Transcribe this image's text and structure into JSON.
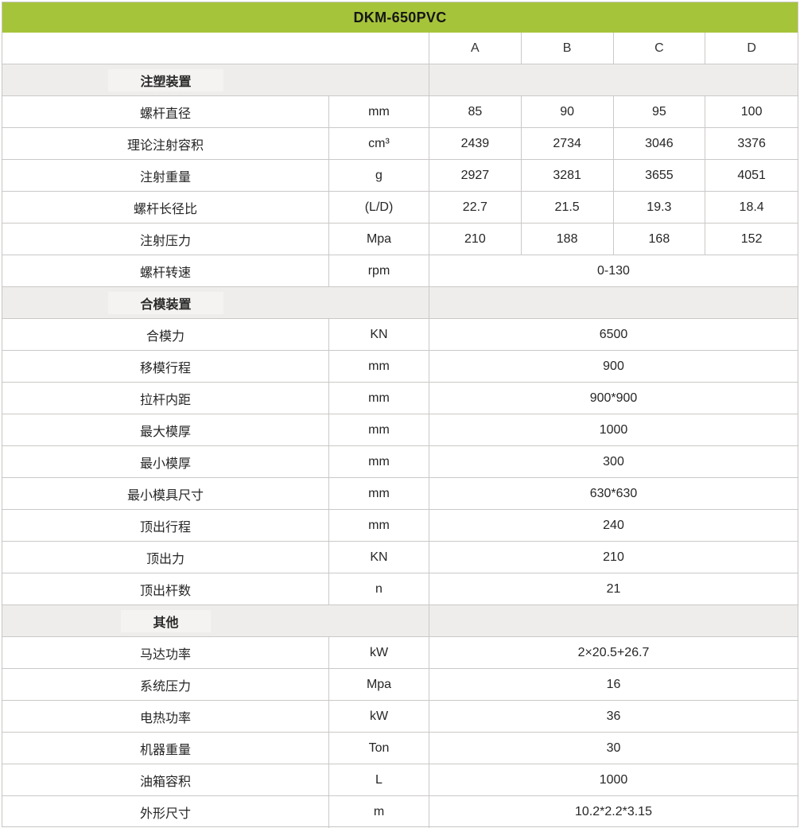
{
  "title": "DKM-650PVC",
  "columns": [
    "A",
    "B",
    "C",
    "D"
  ],
  "colors": {
    "title_bg": "#a6c43a",
    "section_bg": "#eeedeb",
    "grid_line": "#cbc9c7",
    "text": "#262626"
  },
  "sections": [
    {
      "name": "注塑装置",
      "rows": [
        {
          "label": "螺杆直径",
          "unit": "mm",
          "values": [
            "85",
            "90",
            "95",
            "100"
          ]
        },
        {
          "label": "理论注射容积",
          "unit": "cm³",
          "values": [
            "2439",
            "2734",
            "3046",
            "3376"
          ]
        },
        {
          "label": "注射重量",
          "unit": "g",
          "values": [
            "2927",
            "3281",
            "3655",
            "4051"
          ]
        },
        {
          "label": "螺杆长径比",
          "unit": "(L/D)",
          "values": [
            "22.7",
            "21.5",
            "19.3",
            "18.4"
          ]
        },
        {
          "label": "注射压力",
          "unit": "Mpa",
          "values": [
            "210",
            "188",
            "168",
            "152"
          ]
        },
        {
          "label": "螺杆转速",
          "unit": "rpm",
          "values": [
            "0-130"
          ]
        }
      ]
    },
    {
      "name": "合模装置",
      "rows": [
        {
          "label": "合模力",
          "unit": "KN",
          "values": [
            "6500"
          ]
        },
        {
          "label": "移模行程",
          "unit": "mm",
          "values": [
            "900"
          ]
        },
        {
          "label": "拉杆内距",
          "unit": "mm",
          "values": [
            "900*900"
          ]
        },
        {
          "label": "最大模厚",
          "unit": "mm",
          "values": [
            "1000"
          ]
        },
        {
          "label": "最小模厚",
          "unit": "mm",
          "values": [
            "300"
          ]
        },
        {
          "label": "最小模具尺寸",
          "unit": "mm",
          "values": [
            "630*630"
          ]
        },
        {
          "label": "顶出行程",
          "unit": "mm",
          "values": [
            "240"
          ]
        },
        {
          "label": "顶出力",
          "unit": "KN",
          "values": [
            "210"
          ]
        },
        {
          "label": "顶出杆数",
          "unit": "n",
          "values": [
            "21"
          ]
        }
      ]
    },
    {
      "name": "其他",
      "rows": [
        {
          "label": "马达功率",
          "unit": "kW",
          "values": [
            "2×20.5+26.7"
          ]
        },
        {
          "label": "系统压力",
          "unit": "Mpa",
          "values": [
            "16"
          ]
        },
        {
          "label": "电热功率",
          "unit": "kW",
          "values": [
            "36"
          ]
        },
        {
          "label": "机器重量",
          "unit": "Ton",
          "values": [
            "30"
          ]
        },
        {
          "label": "油箱容积",
          "unit": "L",
          "values": [
            "1000"
          ]
        },
        {
          "label": "外形尺寸",
          "unit": "m",
          "values": [
            "10.2*2.2*3.15"
          ]
        }
      ]
    }
  ]
}
